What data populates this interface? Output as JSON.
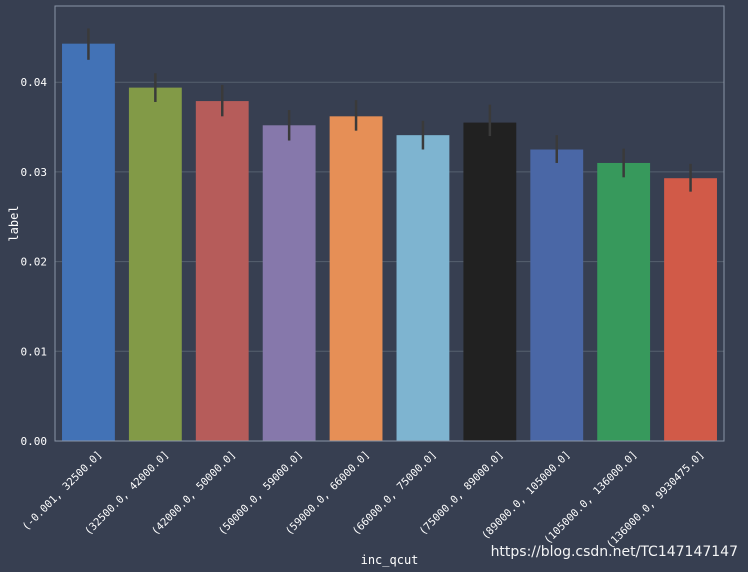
{
  "chart_data": {
    "type": "bar",
    "xlabel": "inc_qcut",
    "ylabel": "label",
    "ylim": [
      0,
      0.0485
    ],
    "yticks": [
      "0.00",
      "0.01",
      "0.02",
      "0.03",
      "0.04"
    ],
    "ytick_values": [
      0,
      0.01,
      0.02,
      0.03,
      0.04
    ],
    "grid": true,
    "categories": [
      "(-0.001, 32500.0]",
      "(32500.0, 42000.0]",
      "(42000.0, 50000.0]",
      "(50000.0, 59000.0]",
      "(59000.0, 66000.0]",
      "(66000.0, 75000.0]",
      "(75000.0, 89000.0]",
      "(89000.0, 105000.0]",
      "(105000.0, 136000.0]",
      "(136000.0, 9930475.0]"
    ],
    "values": [
      0.0443,
      0.0394,
      0.0379,
      0.0352,
      0.0362,
      0.0341,
      0.0355,
      0.0325,
      0.031,
      0.0293
    ],
    "error_low": [
      0.0425,
      0.0378,
      0.0362,
      0.0335,
      0.0346,
      0.0325,
      0.034,
      0.031,
      0.0294,
      0.0278
    ],
    "error_high": [
      0.046,
      0.041,
      0.0397,
      0.0369,
      0.038,
      0.0357,
      0.0375,
      0.0341,
      0.0326,
      0.0309
    ],
    "bar_colors": [
      "#4272b6",
      "#829a47",
      "#b65c5a",
      "#8678ab",
      "#e68f56",
      "#7eb4d0",
      "#212121",
      "#4a67a6",
      "#37995c",
      "#d15a48"
    ],
    "colors": {
      "background": "#373f51",
      "grid": "#56606f",
      "axes_border": "#8a94a6",
      "tick_text": "#ffffff",
      "error_bar": "#3a3a3a"
    }
  },
  "watermark": "https://blog.csdn.net/TC147147147"
}
